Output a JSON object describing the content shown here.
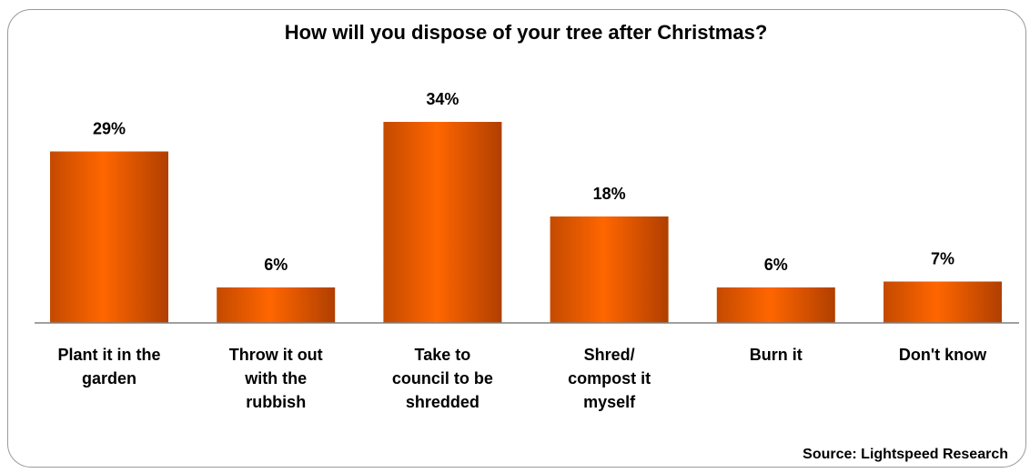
{
  "chart_data": {
    "type": "bar",
    "title": "How will you dispose of your tree after Christmas?",
    "categories": [
      [
        "Plant it in the",
        "garden"
      ],
      [
        "Throw it out",
        "with the",
        "rubbish"
      ],
      [
        "Take to",
        "council to be",
        "shredded"
      ],
      [
        "Shred/",
        "compost it",
        "myself"
      ],
      [
        "Burn it"
      ],
      [
        "Don't know"
      ]
    ],
    "values": [
      29,
      6,
      34,
      18,
      6,
      7
    ],
    "value_labels": [
      "29%",
      "6%",
      "34%",
      "18%",
      "6%",
      "7%"
    ],
    "ylim": [
      0,
      40
    ],
    "xlabel": "",
    "ylabel": "",
    "grid": false,
    "legend": "none",
    "source": "Source: Lightspeed Research",
    "colors": {
      "bar_light": "#ff6600",
      "bar_dark": "#b84200",
      "axis": "#808080"
    }
  }
}
